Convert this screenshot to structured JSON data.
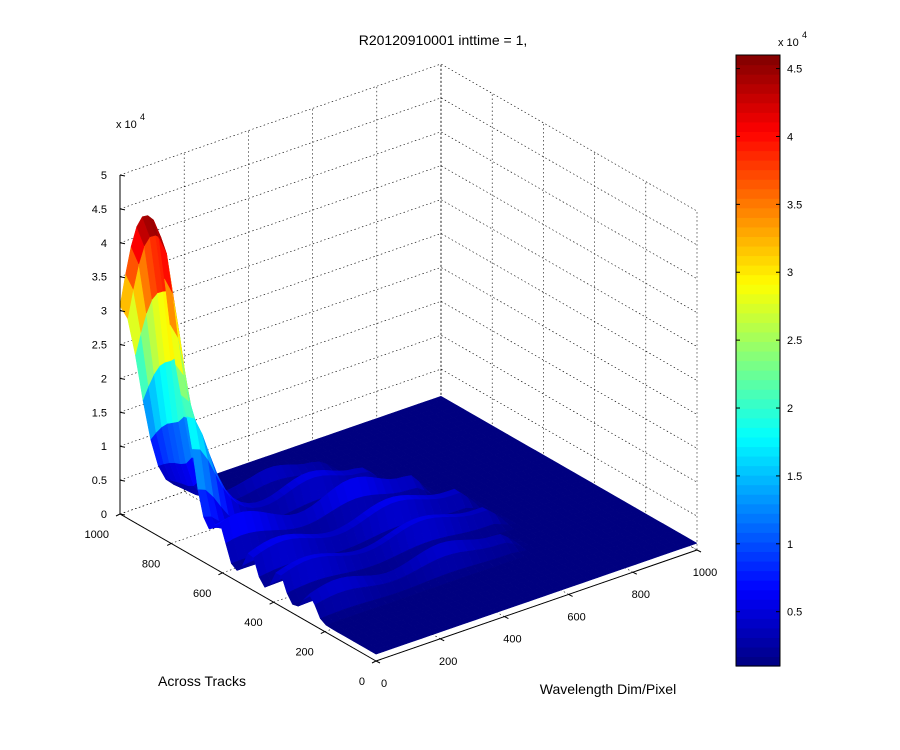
{
  "chart_data": {
    "type": "surface3d",
    "title": "R20120910001 inttime = 1,",
    "xlabel": "Wavelength Dim/Pixel",
    "ylabel": "Across Tracks",
    "zlabel": "",
    "z_multiplier_label": "x 10",
    "z_multiplier_exp": "4",
    "xlim": [
      0,
      1000
    ],
    "ylim": [
      0,
      1000
    ],
    "zlim": [
      0,
      50000
    ],
    "x_ticks": [
      0,
      200,
      400,
      600,
      800,
      1000
    ],
    "x_tick_labels": [
      "0",
      "200",
      "400",
      "600",
      "800",
      "1000"
    ],
    "y_ticks": [
      0,
      200,
      400,
      600,
      800,
      1000
    ],
    "y_tick_labels": [
      "0",
      "200",
      "400",
      "600",
      "800",
      "1000"
    ],
    "z_ticks": [
      0,
      5000,
      10000,
      15000,
      20000,
      25000,
      30000,
      35000,
      40000,
      45000,
      50000
    ],
    "z_tick_labels": [
      "0",
      "0.5",
      "1",
      "1.5",
      "2",
      "2.5",
      "3",
      "3.5",
      "4",
      "4.5",
      "5"
    ],
    "grid": true,
    "colormap": "jet",
    "colorbar": {
      "location": "right",
      "clim": [
        1000,
        46000
      ],
      "multiplier_label": "x 10",
      "multiplier_exp": "4",
      "ticks": [
        5000,
        10000,
        15000,
        20000,
        25000,
        30000,
        35000,
        40000,
        45000
      ],
      "tick_labels": [
        "0.5",
        "1",
        "1.5",
        "2",
        "2.5",
        "3",
        "3.5",
        "4",
        "4.5"
      ]
    },
    "surface": {
      "peak": {
        "x": 0,
        "y": 900,
        "z": 46000
      },
      "base_level": 1000,
      "ridges": [
        {
          "y": 850,
          "x": [
            0,
            550
          ],
          "z": 3500
        },
        {
          "y": 730,
          "x": [
            0,
            600
          ],
          "z": 5000
        },
        {
          "y": 610,
          "x": [
            0,
            650
          ],
          "z": 6000
        },
        {
          "y": 490,
          "x": [
            0,
            700
          ],
          "z": 5500
        },
        {
          "y": 380,
          "x": [
            0,
            700
          ],
          "z": 5000
        },
        {
          "y": 260,
          "x": [
            0,
            650
          ],
          "z": 4000
        }
      ]
    }
  }
}
